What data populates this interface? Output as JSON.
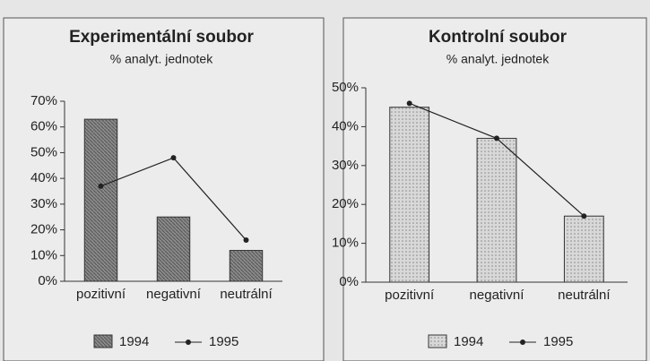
{
  "chart_data": [
    {
      "type": "bar",
      "title": "Experimentální soubor",
      "subtitle": "% analyt. jednotek",
      "categories": [
        "pozitivní",
        "negativní",
        "neutrální"
      ],
      "series": [
        {
          "name": "1994",
          "type": "bar",
          "color": "#8a8a8a",
          "values": [
            63,
            25,
            12
          ]
        },
        {
          "name": "1995",
          "type": "line",
          "color": "#222222",
          "values": [
            37,
            48,
            16
          ]
        }
      ],
      "ylim": [
        0,
        70
      ],
      "yticks": [
        {
          "value": 0,
          "label": "0%"
        },
        {
          "value": 10,
          "label": "10%"
        },
        {
          "value": 20,
          "label": "20%"
        },
        {
          "value": 30,
          "label": "30%"
        },
        {
          "value": 40,
          "label": "40%"
        },
        {
          "value": 50,
          "label": "50%"
        },
        {
          "value": 60,
          "label": "60%"
        },
        {
          "value": 70,
          "label": "70%"
        }
      ],
      "legend": "bottom"
    },
    {
      "type": "bar",
      "title": "Kontrolní soubor",
      "subtitle": "% analyt. jednotek",
      "categories": [
        "pozitivní",
        "negativní",
        "neutrální"
      ],
      "series": [
        {
          "name": "1994",
          "type": "bar",
          "color": "#cfcfcf",
          "values": [
            45,
            37,
            17
          ]
        },
        {
          "name": "1995",
          "type": "line",
          "color": "#222222",
          "values": [
            46,
            37,
            17
          ]
        }
      ],
      "ylim": [
        0,
        50
      ],
      "yticks": [
        {
          "value": 0,
          "label": "0%"
        },
        {
          "value": 10,
          "label": "10%"
        },
        {
          "value": 20,
          "label": "20%"
        },
        {
          "value": 30,
          "label": "30%"
        },
        {
          "value": 40,
          "label": "40%"
        },
        {
          "value": 50,
          "label": "50%"
        }
      ],
      "legend": "bottom"
    }
  ]
}
